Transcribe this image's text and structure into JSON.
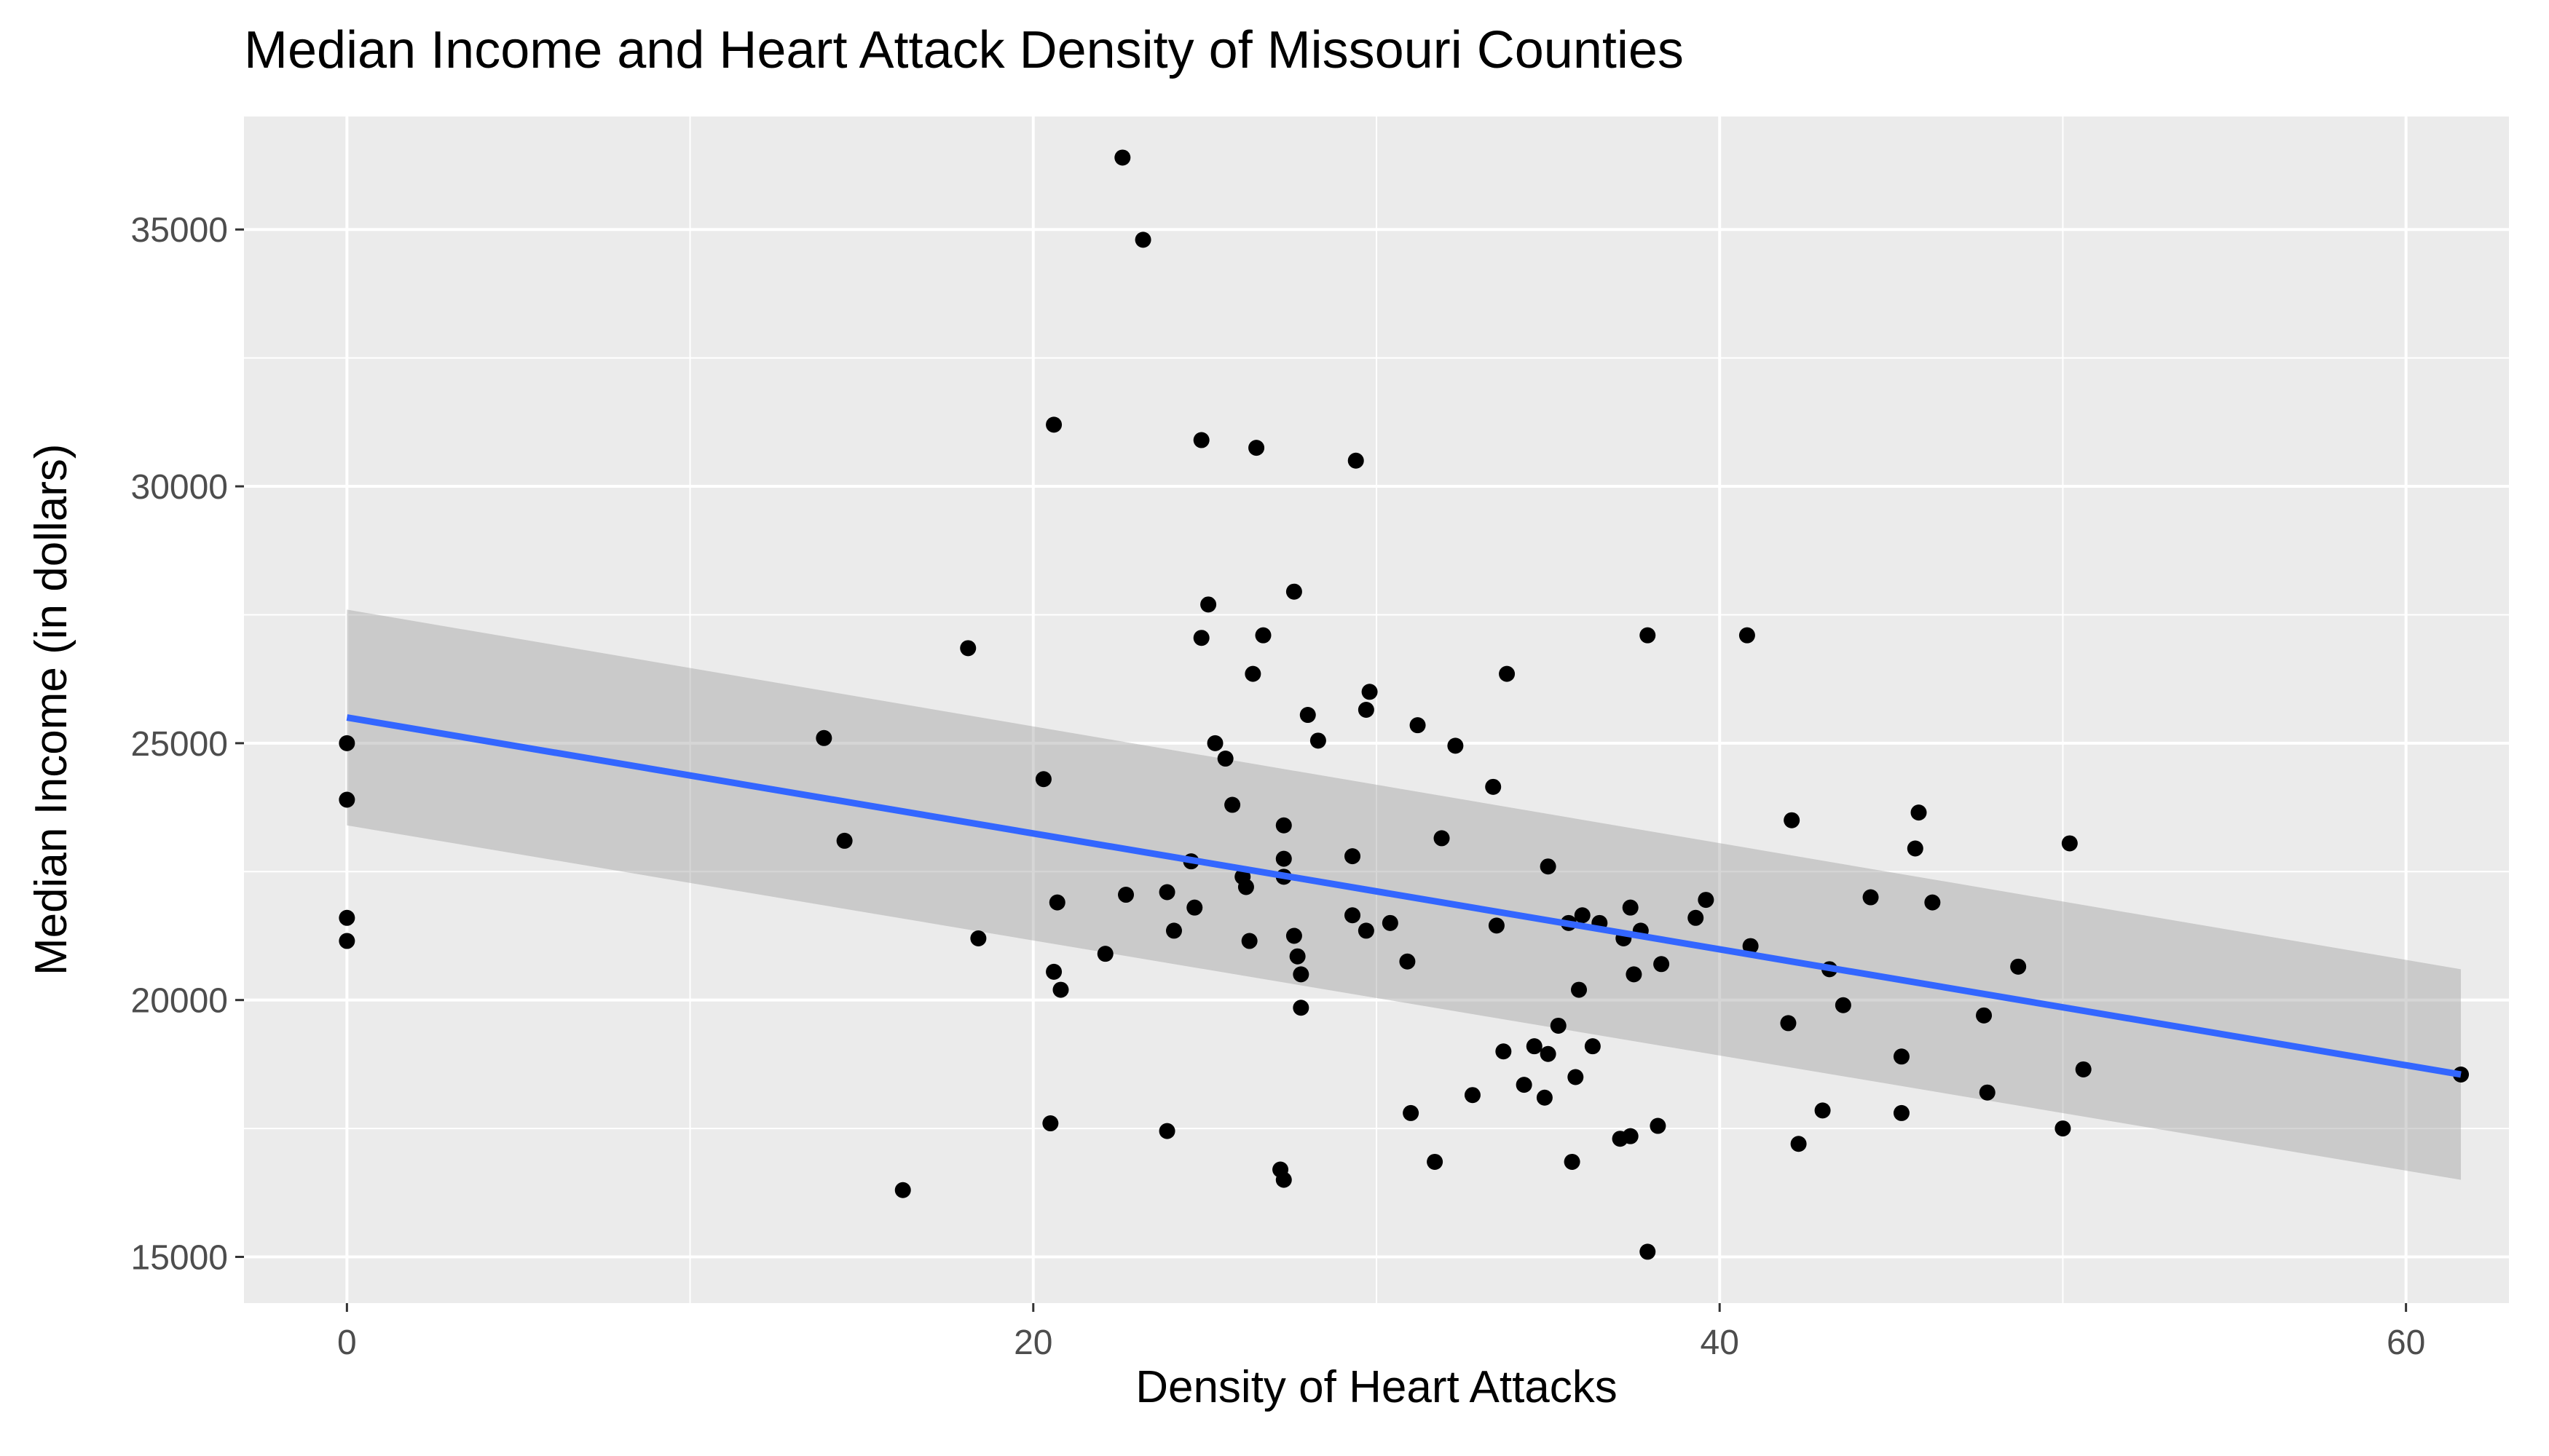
{
  "chart_data": {
    "type": "scatter",
    "title": "Median Income and Heart Attack Density of Missouri Counties",
    "xlabel": "Density of Heart Attacks",
    "ylabel": "Median Income (in dollars)",
    "xlim": [
      -3,
      63
    ],
    "ylim": [
      14100,
      37200
    ],
    "x_ticks": [
      0,
      20,
      40,
      60
    ],
    "y_ticks": [
      15000,
      20000,
      25000,
      30000,
      35000
    ],
    "grid": true,
    "legend": "none",
    "colors": {
      "panel": "#ebebeb",
      "grid": "#ffffff",
      "points": "#000000",
      "trend_line": "#3366ff",
      "confidence_band": "#999999",
      "axis_text": "#4d4d4d"
    },
    "trend_line": {
      "method": "lm",
      "x": [
        0,
        61.6
      ],
      "y": [
        25500,
        18550
      ],
      "se_upper": [
        27600,
        20600
      ],
      "se_lower": [
        23400,
        16500
      ]
    },
    "points": [
      {
        "x": 0,
        "y": 25000
      },
      {
        "x": 0,
        "y": 23900
      },
      {
        "x": 0,
        "y": 21600
      },
      {
        "x": 0,
        "y": 21150
      },
      {
        "x": 13.9,
        "y": 25100
      },
      {
        "x": 14.5,
        "y": 23100
      },
      {
        "x": 16.2,
        "y": 16300
      },
      {
        "x": 18.1,
        "y": 26850
      },
      {
        "x": 18.4,
        "y": 21200
      },
      {
        "x": 20.3,
        "y": 24300
      },
      {
        "x": 20.5,
        "y": 17600
      },
      {
        "x": 20.6,
        "y": 31200
      },
      {
        "x": 20.6,
        "y": 20550
      },
      {
        "x": 20.7,
        "y": 21900
      },
      {
        "x": 20.8,
        "y": 20200
      },
      {
        "x": 22.1,
        "y": 20900
      },
      {
        "x": 22.6,
        "y": 36400
      },
      {
        "x": 22.7,
        "y": 22050
      },
      {
        "x": 23.2,
        "y": 34800
      },
      {
        "x": 23.9,
        "y": 22100
      },
      {
        "x": 23.9,
        "y": 17450
      },
      {
        "x": 24.1,
        "y": 21350
      },
      {
        "x": 24.6,
        "y": 22700
      },
      {
        "x": 24.7,
        "y": 21800
      },
      {
        "x": 24.9,
        "y": 30900
      },
      {
        "x": 24.9,
        "y": 27050
      },
      {
        "x": 25.1,
        "y": 27700
      },
      {
        "x": 25.3,
        "y": 25000
      },
      {
        "x": 25.6,
        "y": 24700
      },
      {
        "x": 25.8,
        "y": 23800
      },
      {
        "x": 26.1,
        "y": 22400
      },
      {
        "x": 26.2,
        "y": 22200
      },
      {
        "x": 26.3,
        "y": 21150
      },
      {
        "x": 26.4,
        "y": 26350
      },
      {
        "x": 26.5,
        "y": 30750
      },
      {
        "x": 26.7,
        "y": 27100
      },
      {
        "x": 27.2,
        "y": 16700
      },
      {
        "x": 27.3,
        "y": 23400
      },
      {
        "x": 27.3,
        "y": 22750
      },
      {
        "x": 27.3,
        "y": 22400
      },
      {
        "x": 27.3,
        "y": 16500
      },
      {
        "x": 27.6,
        "y": 27950
      },
      {
        "x": 27.6,
        "y": 21250
      },
      {
        "x": 27.7,
        "y": 20850
      },
      {
        "x": 27.8,
        "y": 20500
      },
      {
        "x": 27.8,
        "y": 19850
      },
      {
        "x": 28.0,
        "y": 25550
      },
      {
        "x": 28.3,
        "y": 25050
      },
      {
        "x": 29.3,
        "y": 22800
      },
      {
        "x": 29.3,
        "y": 21650
      },
      {
        "x": 29.4,
        "y": 30500
      },
      {
        "x": 29.7,
        "y": 25650
      },
      {
        "x": 29.7,
        "y": 21350
      },
      {
        "x": 29.8,
        "y": 26000
      },
      {
        "x": 30.4,
        "y": 21500
      },
      {
        "x": 30.9,
        "y": 20750
      },
      {
        "x": 31.0,
        "y": 17800
      },
      {
        "x": 31.2,
        "y": 25350
      },
      {
        "x": 31.7,
        "y": 16850
      },
      {
        "x": 31.9,
        "y": 23150
      },
      {
        "x": 32.3,
        "y": 24950
      },
      {
        "x": 32.8,
        "y": 18150
      },
      {
        "x": 33.4,
        "y": 24150
      },
      {
        "x": 33.5,
        "y": 21450
      },
      {
        "x": 33.7,
        "y": 19000
      },
      {
        "x": 33.8,
        "y": 26350
      },
      {
        "x": 34.3,
        "y": 18350
      },
      {
        "x": 34.6,
        "y": 19100
      },
      {
        "x": 34.9,
        "y": 18100
      },
      {
        "x": 35.0,
        "y": 22600
      },
      {
        "x": 35.0,
        "y": 18950
      },
      {
        "x": 35.3,
        "y": 19500
      },
      {
        "x": 35.6,
        "y": 21500
      },
      {
        "x": 35.7,
        "y": 16850
      },
      {
        "x": 35.8,
        "y": 18500
      },
      {
        "x": 35.9,
        "y": 20200
      },
      {
        "x": 36.0,
        "y": 21650
      },
      {
        "x": 36.3,
        "y": 19100
      },
      {
        "x": 36.5,
        "y": 21500
      },
      {
        "x": 37.1,
        "y": 17300
      },
      {
        "x": 37.2,
        "y": 21200
      },
      {
        "x": 37.4,
        "y": 21800
      },
      {
        "x": 37.4,
        "y": 17350
      },
      {
        "x": 37.5,
        "y": 20500
      },
      {
        "x": 37.7,
        "y": 21350
      },
      {
        "x": 37.9,
        "y": 27100
      },
      {
        "x": 37.9,
        "y": 15100
      },
      {
        "x": 38.2,
        "y": 17550
      },
      {
        "x": 38.3,
        "y": 20700
      },
      {
        "x": 39.3,
        "y": 21600
      },
      {
        "x": 39.6,
        "y": 21950
      },
      {
        "x": 40.8,
        "y": 27100
      },
      {
        "x": 40.9,
        "y": 21050
      },
      {
        "x": 42.0,
        "y": 19550
      },
      {
        "x": 42.1,
        "y": 23500
      },
      {
        "x": 42.3,
        "y": 17200
      },
      {
        "x": 43.0,
        "y": 17850
      },
      {
        "x": 43.2,
        "y": 20600
      },
      {
        "x": 43.6,
        "y": 19900
      },
      {
        "x": 44.4,
        "y": 22000
      },
      {
        "x": 45.3,
        "y": 18900
      },
      {
        "x": 45.3,
        "y": 17800
      },
      {
        "x": 45.7,
        "y": 22950
      },
      {
        "x": 45.8,
        "y": 23650
      },
      {
        "x": 46.2,
        "y": 21900
      },
      {
        "x": 47.7,
        "y": 19700
      },
      {
        "x": 47.8,
        "y": 18200
      },
      {
        "x": 48.7,
        "y": 20650
      },
      {
        "x": 50.0,
        "y": 17500
      },
      {
        "x": 50.2,
        "y": 23050
      },
      {
        "x": 50.6,
        "y": 18650
      },
      {
        "x": 61.6,
        "y": 18550
      }
    ]
  }
}
